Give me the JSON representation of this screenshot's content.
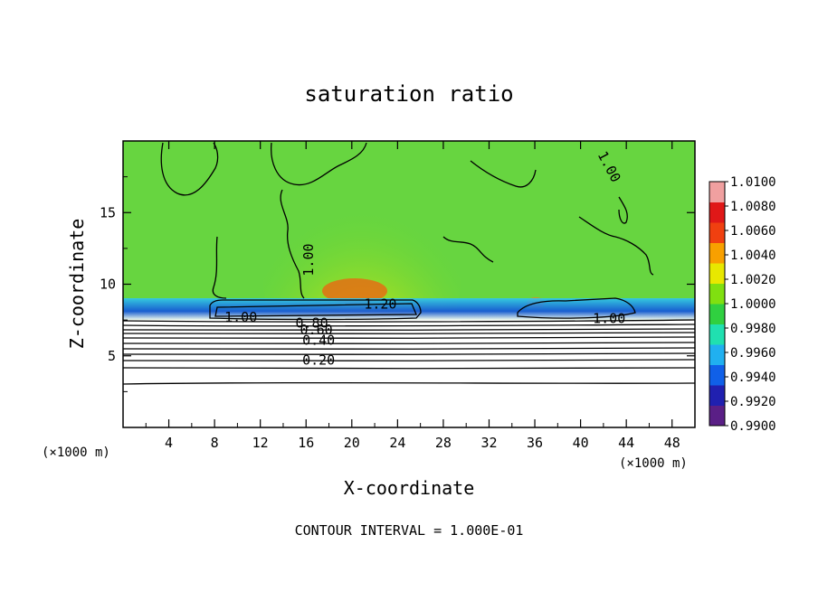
{
  "chart_data": {
    "type": "heatmap",
    "title": "saturation ratio",
    "xlabel": "X-coordinate",
    "ylabel": "Z-coordinate",
    "x_unit": "(×1000 m)",
    "z_unit": "(×1000 m)",
    "xlim": [
      0,
      50
    ],
    "ylim": [
      0,
      20
    ],
    "x_ticks": [
      "4",
      "8",
      "12",
      "16",
      "20",
      "24",
      "28",
      "32",
      "36",
      "40",
      "44",
      "48"
    ],
    "y_ticks": [
      "5",
      "10",
      "15"
    ],
    "colorbar": {
      "min": 0.99,
      "max": 1.01,
      "ticks": [
        "1.0100",
        "1.0080",
        "1.0060",
        "1.0040",
        "1.0020",
        "1.0000",
        "0.9980",
        "0.9960",
        "0.9940",
        "0.9920",
        "0.9900"
      ],
      "colors": [
        "#5a1f86",
        "#2020b0",
        "#1060e8",
        "#20b0f0",
        "#20e0b0",
        "#30d040",
        "#80e010",
        "#e8e800",
        "#f8a000",
        "#f04010",
        "#e01818",
        "#f0a0a0"
      ]
    },
    "contour_labels": [
      {
        "text": "1.00",
        "x": 42.5,
        "y": 18.2
      },
      {
        "text": "1.00",
        "x": 16.2,
        "y": 11.7
      },
      {
        "text": "1.20",
        "x": 22.5,
        "y": 8.6
      },
      {
        "text": "1.00",
        "x": 10.3,
        "y": 7.7
      },
      {
        "text": "0.80",
        "x": 16.5,
        "y": 7.3
      },
      {
        "text": "0.60",
        "x": 16.9,
        "y": 6.8
      },
      {
        "text": "0.40",
        "x": 17.1,
        "y": 6.1
      },
      {
        "text": "0.20",
        "x": 17.1,
        "y": 4.7
      },
      {
        "text": "1.00",
        "x": 42.5,
        "y": 7.6
      }
    ],
    "footer": "CONTOUR INTERVAL = 1.000E-01"
  }
}
